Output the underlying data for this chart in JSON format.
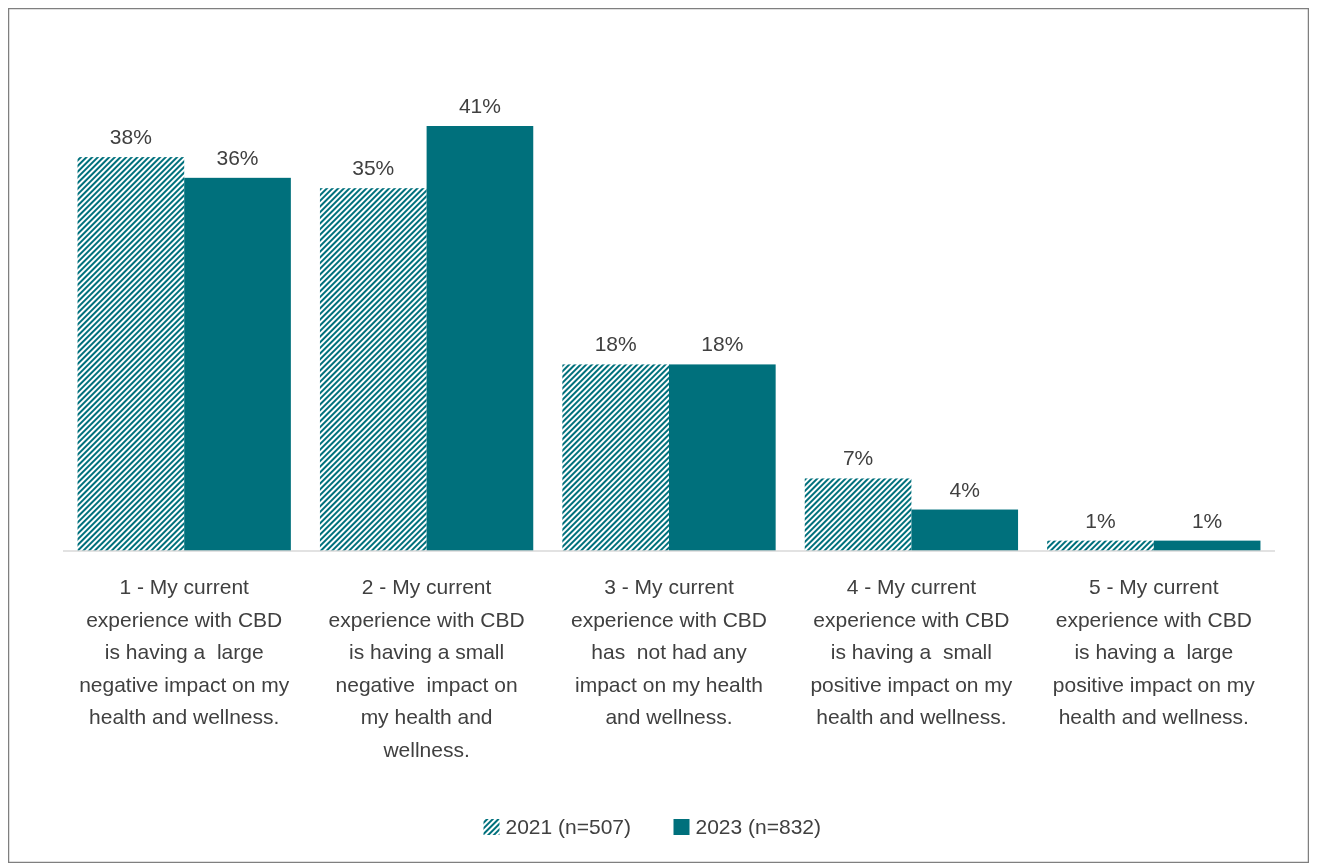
{
  "chart_data": {
    "type": "bar",
    "categories": [
      "1 - My current experience with CBD is having a  large negative impact on my health and wellness.",
      "2 - My current experience with CBD is having a small negative  impact on my health and wellness.",
      "3 - My current experience with CBD has  not had any impact on my health and wellness.",
      "4 - My current experience with CBD is having a  small positive impact on my health and wellness.",
      "5 - My current experience with CBD is having a  large positive impact on my health and wellness."
    ],
    "series": [
      {
        "name": "2021 (n=507)",
        "color": "#00707c",
        "values": [
          38,
          35,
          18,
          7,
          1
        ],
        "value_labels": [
          "38%",
          "35%",
          "18%",
          "7%",
          "1%"
        ]
      },
      {
        "name": "2023 (n=832)",
        "color": "#00707c",
        "values": [
          36,
          41,
          18,
          4,
          1
        ],
        "value_labels": [
          "36%",
          "41%",
          "18%",
          "4%",
          "1%"
        ]
      }
    ],
    "legend": "bottom",
    "grid": false
  }
}
